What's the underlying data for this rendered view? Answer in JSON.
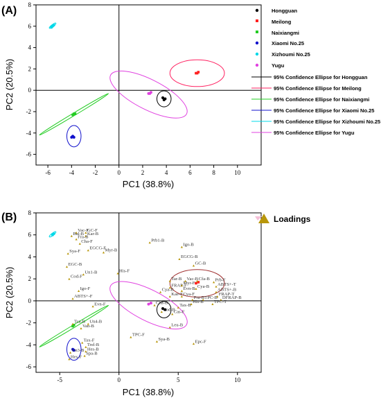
{
  "chart_data": [
    {
      "panel_label": "(A)",
      "type": "scatter",
      "xlabel": "PC1 (38.8%)",
      "ylabel": "PC2 (20.5%)",
      "xlim": [
        -7,
        12
      ],
      "ylim": [
        -7,
        8
      ],
      "xticks": [
        -6,
        -4,
        -2,
        0,
        2,
        4,
        6,
        8,
        10
      ],
      "yticks": [
        -6,
        -4,
        -2,
        0,
        2,
        4,
        6,
        8
      ],
      "legend_position": "right",
      "series": [
        {
          "name": "Hongguan",
          "color": "#000000",
          "points": [
            [
              3.7,
              -0.7
            ],
            [
              3.9,
              -0.8
            ],
            [
              3.8,
              -0.9
            ]
          ]
        },
        {
          "name": "Meilong",
          "color": "#ff2020",
          "points": [
            [
              6.5,
              1.6
            ],
            [
              6.7,
              1.7
            ],
            [
              6.6,
              1.6
            ]
          ]
        },
        {
          "name": "Naixiangmi",
          "color": "#22cc22",
          "points": [
            [
              -3.8,
              -2.2
            ],
            [
              -3.9,
              -2.3
            ],
            [
              -3.7,
              -2.2
            ]
          ]
        },
        {
          "name": "Xiaomi No.25",
          "color": "#1010cc",
          "points": [
            [
              -3.9,
              -4.3
            ],
            [
              -3.8,
              -4.4
            ],
            [
              -4.0,
              -4.4
            ]
          ]
        },
        {
          "name": "Xizhoumi No.25",
          "color": "#00d8e8",
          "points": [
            [
              -5.6,
              6.0
            ],
            [
              -5.5,
              6.1
            ],
            [
              -5.7,
              5.9
            ]
          ]
        },
        {
          "name": "Yugu",
          "color": "#e040e0",
          "points": [
            [
              2.5,
              -0.3
            ],
            [
              2.7,
              -0.2
            ],
            [
              2.6,
              -0.3
            ]
          ]
        }
      ],
      "ellipses": [
        {
          "name": "95% Confidence Ellipse for Hongguan",
          "color": "#000000",
          "cx": 3.8,
          "cy": -0.8,
          "rx": 0.6,
          "ry": 0.75,
          "angle": 0
        },
        {
          "name": "95% Confidence Ellipse for Meilong",
          "color": "#ff2060",
          "cx": 6.6,
          "cy": 1.6,
          "rx": 2.3,
          "ry": 1.25,
          "angle": 0
        },
        {
          "name": "95% Confidence Ellipse for Naixiangmi",
          "color": "#22cc22",
          "cx": -3.8,
          "cy": -2.25,
          "rx": 3.4,
          "ry": 0.12,
          "angle": -31
        },
        {
          "name": "95% Confidence Ellipse for Xiaomi No.25",
          "color": "#1010cc",
          "cx": -3.8,
          "cy": -4.3,
          "rx": 0.6,
          "ry": 1.0,
          "angle": 0
        },
        {
          "name": "95% Confidence Ellipse for Xizhoumi No.25",
          "color": "#00d8e8",
          "cx": -5.6,
          "cy": 6.05,
          "rx": 0.35,
          "ry": 0.1,
          "angle": -38
        },
        {
          "name": "95% Confidence Ellipse for Yugu",
          "color": "#e040e0",
          "cx": 2.5,
          "cy": -0.4,
          "rx": 3.6,
          "ry": 1.4,
          "angle": 27
        }
      ]
    },
    {
      "panel_label": "(B)",
      "type": "scatter",
      "xlabel": "PC1 (38.8%)",
      "ylabel": "PC2 (20.5%)",
      "xlim": [
        -7,
        12
      ],
      "ylim": [
        -6.5,
        8
      ],
      "xticks": [
        -5,
        0,
        5,
        10
      ],
      "yticks": [
        -6,
        -4,
        -2,
        0,
        2,
        4,
        6,
        8
      ],
      "legend": "Loadings",
      "legend_color": "#b8960a",
      "series": [
        {
          "name": "Hongguan",
          "color": "#000000",
          "points": [
            [
              3.7,
              -0.7
            ],
            [
              3.9,
              -0.8
            ]
          ]
        },
        {
          "name": "Meilong",
          "color": "#ff2020",
          "points": [
            [
              6.5,
              1.6
            ],
            [
              6.7,
              1.7
            ]
          ]
        },
        {
          "name": "Naixiangmi",
          "color": "#22cc22",
          "points": [
            [
              -3.8,
              -2.2
            ],
            [
              -3.9,
              -2.3
            ]
          ]
        },
        {
          "name": "Xiaomi No.25",
          "color": "#1010cc",
          "points": [
            [
              -3.9,
              -4.4
            ],
            [
              -3.8,
              -4.5
            ]
          ]
        },
        {
          "name": "Xizhoumi No.25",
          "color": "#00d8e8",
          "points": [
            [
              -5.6,
              6.0
            ],
            [
              -5.5,
              6.1
            ]
          ]
        },
        {
          "name": "Yugu",
          "color": "#e040e0",
          "points": [
            [
              2.5,
              -0.3
            ],
            [
              2.7,
              -0.2
            ]
          ]
        }
      ],
      "ellipses": [
        {
          "color": "#000000",
          "cx": 3.8,
          "cy": -0.8,
          "rx": 0.6,
          "ry": 0.75,
          "angle": 0
        },
        {
          "color": "#a03030",
          "cx": 6.6,
          "cy": 1.6,
          "rx": 2.3,
          "ry": 1.25,
          "angle": 0
        },
        {
          "color": "#22cc22",
          "cx": -3.8,
          "cy": -2.3,
          "rx": 3.4,
          "ry": 0.12,
          "angle": -31
        },
        {
          "color": "#1010cc",
          "cx": -3.8,
          "cy": -4.4,
          "rx": 0.6,
          "ry": 1.0,
          "angle": 0
        },
        {
          "color": "#00d8e8",
          "cx": -5.6,
          "cy": 6.05,
          "rx": 0.35,
          "ry": 0.1,
          "angle": -38
        },
        {
          "color": "#e040e0",
          "cx": 2.5,
          "cy": -0.4,
          "rx": 3.6,
          "ry": 1.4,
          "angle": 27
        }
      ],
      "loadings": [
        {
          "label": "Vac-F",
          "x": -3.6,
          "y": 6.2
        },
        {
          "label": "GC-F",
          "x": -2.8,
          "y": 6.2
        },
        {
          "label": "Bal-B",
          "x": -4.0,
          "y": 5.9
        },
        {
          "label": "Kar-B",
          "x": -2.8,
          "y": 5.9
        },
        {
          "label": "Fra-B",
          "x": -3.6,
          "y": 5.6
        },
        {
          "label": "Cha-F",
          "x": -3.3,
          "y": 5.2
        },
        {
          "label": "EGCG-F",
          "x": -2.6,
          "y": 4.6
        },
        {
          "label": "Myr-B",
          "x": -1.3,
          "y": 4.4
        },
        {
          "label": "Sya-F",
          "x": -4.3,
          "y": 4.3
        },
        {
          "label": "EGC-B",
          "x": -4.4,
          "y": 3.1
        },
        {
          "label": "Un1-B",
          "x": -3.0,
          "y": 2.4
        },
        {
          "label": "His-F",
          "x": -0.1,
          "y": 2.5
        },
        {
          "label": "Cod-F",
          "x": -4.2,
          "y": 2.0
        },
        {
          "label": "Igo-F",
          "x": -3.4,
          "y": 0.9
        },
        {
          "label": "ABTS+-F",
          "x": -3.9,
          "y": 0.2
        },
        {
          "label": "Evn-F",
          "x": -2.2,
          "y": -0.5
        },
        {
          "label": "Tca-B",
          "x": -3.9,
          "y": -2.1
        },
        {
          "label": "Un4-B",
          "x": -2.6,
          "y": -2.1
        },
        {
          "label": "Van-B",
          "x": -3.2,
          "y": -2.5
        },
        {
          "label": "Tax-F",
          "x": -3.1,
          "y": -3.8
        },
        {
          "label": "Trel-B",
          "x": -2.8,
          "y": -4.2
        },
        {
          "label": "Hes-B",
          "x": -2.8,
          "y": -4.6
        },
        {
          "label": "Un3-B",
          "x": -4.1,
          "y": -4.7
        },
        {
          "label": "Spa-B",
          "x": -2.9,
          "y": -5.0
        },
        {
          "label": "Hes-F",
          "x": -4.2,
          "y": -5.3
        },
        {
          "label": "Prb1-B",
          "x": 2.6,
          "y": 5.3
        },
        {
          "label": "Igo-B",
          "x": 5.3,
          "y": 4.9
        },
        {
          "label": "EGCG-B",
          "x": 5.1,
          "y": 3.8
        },
        {
          "label": "GC-B",
          "x": 6.3,
          "y": 3.2
        },
        {
          "label": "Tar-B",
          "x": 4.3,
          "y": 1.8
        },
        {
          "label": "Vac-B",
          "x": 5.6,
          "y": 1.8
        },
        {
          "label": "Cfa-B",
          "x": 6.6,
          "y": 1.8
        },
        {
          "label": "Prb-F",
          "x": 8.0,
          "y": 1.7
        },
        {
          "label": "ABTS+-T",
          "x": 8.2,
          "y": 1.3
        },
        {
          "label": "FRAP-F",
          "x": 4.3,
          "y": 1.2
        },
        {
          "label": "Myr-F",
          "x": 5.3,
          "y": 1.4
        },
        {
          "label": "Evn-B",
          "x": 5.3,
          "y": 0.9
        },
        {
          "label": "Cya-B",
          "x": 6.5,
          "y": 1.1
        },
        {
          "label": "ABTS+-B",
          "x": 8.2,
          "y": 0.8
        },
        {
          "label": "Cya-B",
          "x": 3.5,
          "y": 0.8
        },
        {
          "label": "Kae-F",
          "x": 4.3,
          "y": 0.4
        },
        {
          "label": "Cya-F",
          "x": 5.3,
          "y": 0.4
        },
        {
          "label": "FRAP-T",
          "x": 8.3,
          "y": 0.4
        },
        {
          "label": "Pra-B",
          "x": 6.2,
          "y": 0.1
        },
        {
          "label": "TPC-B",
          "x": 7.1,
          "y": 0.1
        },
        {
          "label": "DFRAP-B",
          "x": 8.6,
          "y": 0.1
        },
        {
          "label": "Cha-B",
          "x": 3.0,
          "y": -0.4
        },
        {
          "label": "Tax-B",
          "x": 5.0,
          "y": -0.6
        },
        {
          "label": "His-B",
          "x": 6.1,
          "y": -0.3
        },
        {
          "label": "TPC-T",
          "x": 7.9,
          "y": -0.3
        },
        {
          "label": "Cod-B",
          "x": 3.6,
          "y": -1.0
        },
        {
          "label": "Cas-F",
          "x": 4.5,
          "y": -1.2
        },
        {
          "label": "Leu-B",
          "x": 4.3,
          "y": -2.4
        },
        {
          "label": "TPC-F",
          "x": 1.0,
          "y": -3.3
        },
        {
          "label": "Epc-F",
          "x": 6.3,
          "y": -3.9
        },
        {
          "label": "Sya-B",
          "x": 3.2,
          "y": -3.7
        }
      ]
    }
  ]
}
